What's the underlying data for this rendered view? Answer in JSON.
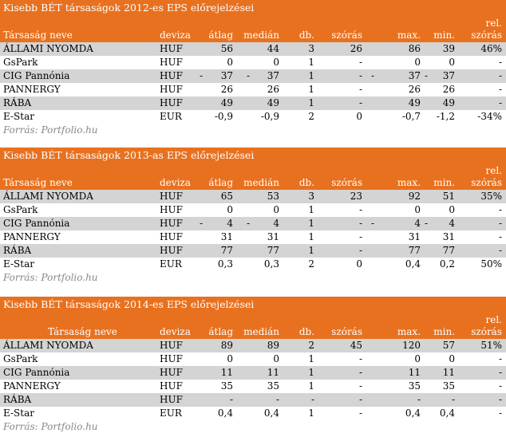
{
  "columns": {
    "name": "Társaság neve",
    "deviza": "deviza",
    "atlag": "átlag",
    "median": "medián",
    "db": "db.",
    "szoras": "szórás",
    "max": "max.",
    "min": "min.",
    "rel_line1": "rel.",
    "rel_line2": "szórás"
  },
  "tables": [
    {
      "title": "Kisebb BÉT társaságok 2012-es EPS előrejelzései",
      "source": "Forrás: Portfolio.hu",
      "rows": [
        {
          "name": "ÁLLAMI NYOMDA",
          "deviza": "HUF",
          "atlag": "56",
          "median": "44",
          "db": "3",
          "szoras": "26",
          "max": "86",
          "min": "39",
          "rel": "46%",
          "shade": true
        },
        {
          "name": "GsPark",
          "deviza": "HUF",
          "atlag": "0",
          "median": "0",
          "db": "1",
          "szoras": "-",
          "max": "0",
          "min": "0",
          "rel": "-",
          "shade": false
        },
        {
          "name": "CIG Pannónia",
          "deviza": "HUF",
          "atlag": "37",
          "median": "37",
          "db": "1",
          "szoras": "-",
          "max": "37",
          "min": "37",
          "rel": "-",
          "shade": true,
          "neg": true
        },
        {
          "name": "PANNERGY",
          "deviza": "HUF",
          "atlag": "26",
          "median": "26",
          "db": "1",
          "szoras": "-",
          "max": "26",
          "min": "26",
          "rel": "-",
          "shade": false
        },
        {
          "name": "RÁBA",
          "deviza": "HUF",
          "atlag": "49",
          "median": "49",
          "db": "1",
          "szoras": "-",
          "max": "49",
          "min": "49",
          "rel": "-",
          "shade": true
        },
        {
          "name": "E-Star",
          "deviza": "EUR",
          "atlag": "-0,9",
          "median": "-0,9",
          "db": "2",
          "szoras": "0",
          "max": "-0,7",
          "min": "-1,2",
          "rel": "-34%",
          "shade": false
        }
      ]
    },
    {
      "title": "Kisebb BÉT társaságok 2013-as EPS előrejelzései",
      "source": "Forrás: Portfolio.hu",
      "rows": [
        {
          "name": "ÁLLAMI NYOMDA",
          "deviza": "HUF",
          "atlag": "65",
          "median": "53",
          "db": "3",
          "szoras": "23",
          "max": "92",
          "min": "51",
          "rel": "35%",
          "shade": true
        },
        {
          "name": "GsPark",
          "deviza": "HUF",
          "atlag": "0",
          "median": "0",
          "db": "1",
          "szoras": "-",
          "max": "0",
          "min": "0",
          "rel": "-",
          "shade": false
        },
        {
          "name": "CIG Pannónia",
          "deviza": "HUF",
          "atlag": "4",
          "median": "4",
          "db": "1",
          "szoras": "-",
          "max": "4",
          "min": "4",
          "rel": "-",
          "shade": true,
          "neg": true
        },
        {
          "name": "PANNERGY",
          "deviza": "HUF",
          "atlag": "31",
          "median": "31",
          "db": "1",
          "szoras": "-",
          "max": "31",
          "min": "31",
          "rel": "-",
          "shade": false
        },
        {
          "name": "RÁBA",
          "deviza": "HUF",
          "atlag": "77",
          "median": "77",
          "db": "1",
          "szoras": "-",
          "max": "77",
          "min": "77",
          "rel": "-",
          "shade": true
        },
        {
          "name": "E-Star",
          "deviza": "EUR",
          "atlag": "0,3",
          "median": "0,3",
          "db": "2",
          "szoras": "0",
          "max": "0,4",
          "min": "0,2",
          "rel": "50%",
          "shade": false
        }
      ]
    },
    {
      "title": "Kisebb BÉT társaságok 2014-es EPS előrejelzései",
      "source": "Forrás: Portfolio.hu",
      "center_header": true,
      "rows": [
        {
          "name": "ÁLLAMI NYOMDA",
          "deviza": "HUF",
          "atlag": "89",
          "median": "89",
          "db": "2",
          "szoras": "45",
          "max": "120",
          "min": "57",
          "rel": "51%",
          "shade": true
        },
        {
          "name": "GsPark",
          "deviza": "HUF",
          "atlag": "0",
          "median": "0",
          "db": "1",
          "szoras": "-",
          "max": "0",
          "min": "0",
          "rel": "-",
          "shade": false
        },
        {
          "name": "CIG Pannónia",
          "deviza": "HUF",
          "atlag": "11",
          "median": "11",
          "db": "1",
          "szoras": "-",
          "max": "11",
          "min": "11",
          "rel": "-",
          "shade": true
        },
        {
          "name": "PANNERGY",
          "deviza": "HUF",
          "atlag": "35",
          "median": "35",
          "db": "1",
          "szoras": "-",
          "max": "35",
          "min": "35",
          "rel": "-",
          "shade": false
        },
        {
          "name": "RÁBA",
          "deviza": "HUF",
          "atlag": "-",
          "median": "-",
          "db": "-",
          "szoras": "-",
          "max": "-",
          "min": "-",
          "rel": "-",
          "shade": true
        },
        {
          "name": "E-Star",
          "deviza": "EUR",
          "atlag": "0,4",
          "median": "0,4",
          "db": "1",
          "szoras": "-",
          "max": "0,4",
          "min": "0,4",
          "rel": "-",
          "shade": false
        }
      ]
    }
  ]
}
